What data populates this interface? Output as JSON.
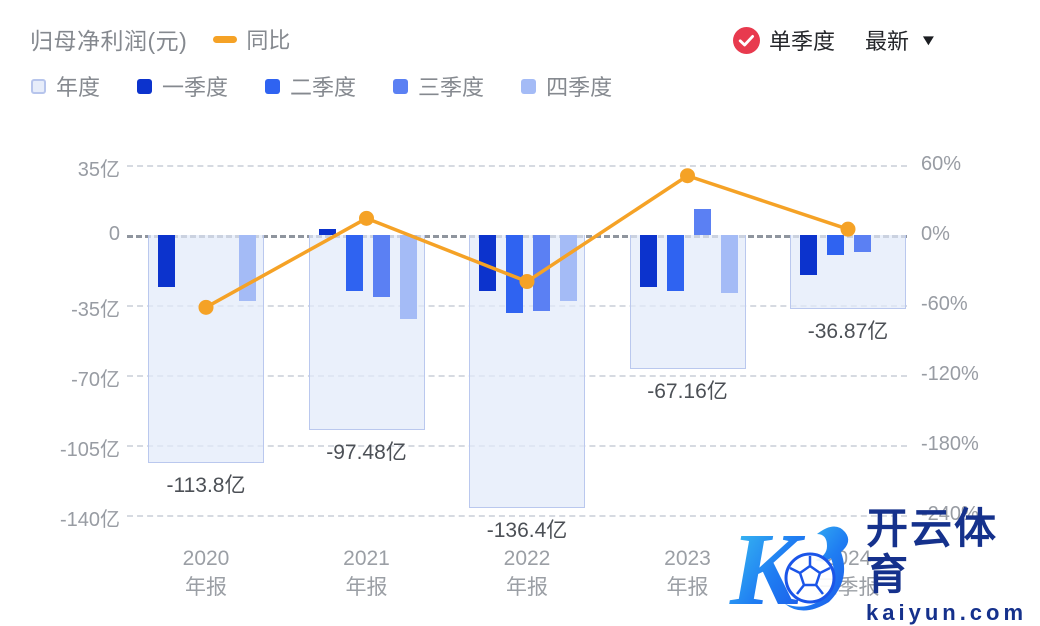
{
  "header": {
    "title": "归母净利润(元)",
    "line_legend_label": "同比",
    "filter_label": "单季度",
    "dropdown_label": "最新"
  },
  "legend": [
    {
      "key": "annual",
      "label": "年度",
      "color": "#e7edfa",
      "border": "#b7c5ec"
    },
    {
      "key": "q1",
      "label": "一季度",
      "color": "#0c33cd"
    },
    {
      "key": "q2",
      "label": "二季度",
      "color": "#2f63f1"
    },
    {
      "key": "q3",
      "label": "三季度",
      "color": "#5b80f3"
    },
    {
      "key": "q4",
      "label": "四季度",
      "color": "#a4bbf6"
    }
  ],
  "chart_data": {
    "type": "bar",
    "categories": [
      {
        "line1": "2020",
        "line2": "年报"
      },
      {
        "line1": "2021",
        "line2": "年报"
      },
      {
        "line1": "2022",
        "line2": "年报"
      },
      {
        "line1": "2023",
        "line2": "年报"
      },
      {
        "line1": "2024",
        "line2": "三季报"
      }
    ],
    "unit_bars": "亿",
    "series": [
      {
        "name": "年度",
        "values": [
          -113.8,
          -97.48,
          -136.4,
          -67.16,
          -36.87
        ],
        "labels": [
          "-113.8亿",
          "-97.48亿",
          "-136.4亿",
          "-67.16亿",
          "-36.87亿"
        ]
      },
      {
        "name": "一季度",
        "values": [
          -26,
          3,
          -28,
          -26,
          -20
        ]
      },
      {
        "name": "二季度",
        "values": [
          null,
          -28,
          -39,
          -28,
          -10
        ]
      },
      {
        "name": "三季度",
        "values": [
          null,
          -31,
          -38,
          13,
          -8.5
        ]
      },
      {
        "name": "四季度",
        "values": [
          -33,
          -42,
          -33,
          -29,
          null
        ]
      }
    ],
    "line_series": {
      "name": "同比",
      "unit": "%",
      "values": [
        -62,
        14.3,
        -39.9,
        50.8,
        5
      ]
    },
    "y_left": {
      "ticks": [
        "35亿",
        "0",
        "-35亿",
        "-70亿",
        "-105亿",
        "-140亿"
      ],
      "max": 35,
      "min": -140,
      "step": 35
    },
    "y_right": {
      "ticks": [
        "60%",
        "0%",
        "-60%",
        "-120%",
        "-180%",
        "-240%"
      ],
      "max": 60,
      "min": -240,
      "step": 60
    },
    "grid": "dashed",
    "legend_position": "top-left"
  },
  "colors": {
    "line": "#f5a226",
    "check_badge": "#e83a4e",
    "zero_grid": "#8f959e",
    "grid": "#d6dae1"
  },
  "watermark": {
    "brand": "开云体育",
    "domain": "kaiyun.com"
  }
}
